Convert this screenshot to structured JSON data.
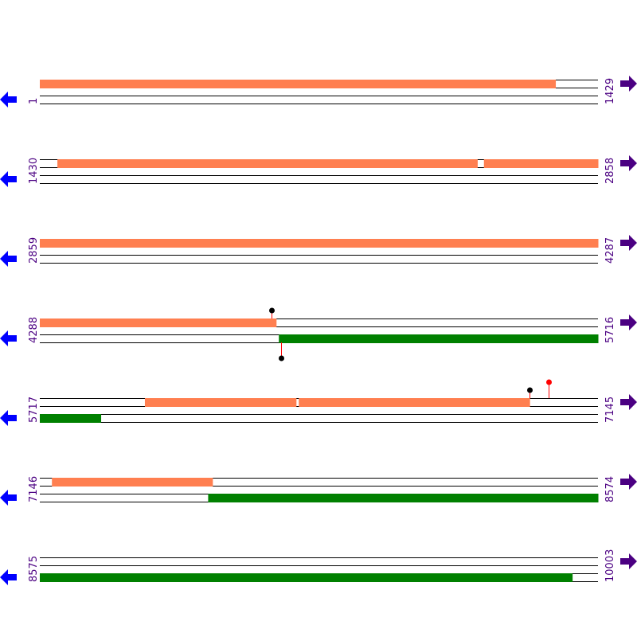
{
  "colors": {
    "forward_feature": "#ff7f50",
    "reverse_feature": "#008000",
    "track_line": "#000000",
    "label": "#4b0082",
    "left_arrow": "#0000ff",
    "right_arrow": "#4b0082",
    "marker_stem": "#ff0000"
  },
  "bp_per_row": 1429,
  "rows": [
    {
      "start_label": "1",
      "end_label": "1429",
      "start": 1,
      "end": 1429
    },
    {
      "start_label": "1430",
      "end_label": "2858",
      "start": 1430,
      "end": 2858
    },
    {
      "start_label": "2859",
      "end_label": "4287",
      "start": 2859,
      "end": 4287
    },
    {
      "start_label": "4288",
      "end_label": "5716",
      "start": 4288,
      "end": 5716
    },
    {
      "start_label": "5717",
      "end_label": "7145",
      "start": 5717,
      "end": 7145
    },
    {
      "start_label": "7146",
      "end_label": "8574",
      "start": 7146,
      "end": 8574
    },
    {
      "start_label": "8575",
      "end_label": "10003",
      "start": 8575,
      "end": 10003
    }
  ],
  "features": [
    {
      "strand": "forward",
      "start": 1,
      "end": 1320
    },
    {
      "strand": "forward",
      "start": 1475,
      "end": 2549
    },
    {
      "strand": "forward",
      "start": 2567,
      "end": 2858
    },
    {
      "strand": "forward",
      "start": 2859,
      "end": 4287
    },
    {
      "strand": "forward",
      "start": 4288,
      "end": 4892
    },
    {
      "strand": "reverse",
      "start": 4900,
      "end": 5716
    },
    {
      "strand": "forward",
      "start": 5986,
      "end": 6372
    },
    {
      "strand": "forward",
      "start": 6380,
      "end": 6970
    },
    {
      "strand": "reverse",
      "start": 5717,
      "end": 5872
    },
    {
      "strand": "forward",
      "start": 7177,
      "end": 7587
    },
    {
      "strand": "reverse",
      "start": 7577,
      "end": 8574
    },
    {
      "strand": "reverse",
      "start": 8575,
      "end": 9937
    }
  ],
  "markers": [
    {
      "position": 4882,
      "side": "top",
      "color": "#000000"
    },
    {
      "position": 4906,
      "side": "bottom",
      "color": "#000000"
    },
    {
      "position": 6970,
      "side": "top",
      "color": "#000000"
    },
    {
      "position": 7019,
      "side": "top",
      "color": "#ff0000",
      "tall": true
    }
  ],
  "icons": {
    "left": "arrow-left-icon",
    "right": "arrow-right-icon"
  }
}
